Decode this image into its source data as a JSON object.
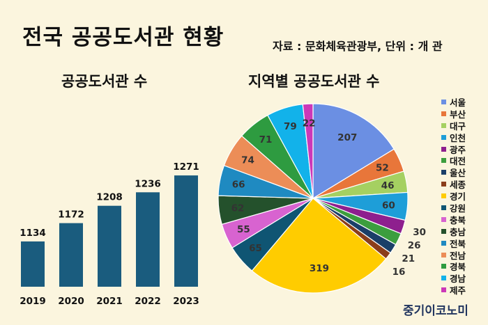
{
  "header": {
    "title": "전국 공공도서관 현황",
    "source": "자료 : 문화체육관광부, 단위 : 개 관"
  },
  "brand": "중기이코노미",
  "chart_data": [
    {
      "type": "bar",
      "title": "공공도서관 수",
      "categories": [
        "2019",
        "2020",
        "2021",
        "2022",
        "2023"
      ],
      "values": [
        1134,
        1172,
        1208,
        1236,
        1271
      ],
      "ylim": [
        1040,
        1300
      ],
      "grid": false,
      "color": "#1A5C7E"
    },
    {
      "type": "pie",
      "title": "지역별 공공도서관 수",
      "legend_position": "right",
      "labels": [
        "서울",
        "부산",
        "대구",
        "인천",
        "광주",
        "대전",
        "울산",
        "세종",
        "경기",
        "강원",
        "충북",
        "충남",
        "전북",
        "전남",
        "경북",
        "경남",
        "제주"
      ],
      "values": [
        207,
        52,
        46,
        60,
        30,
        26,
        21,
        16,
        319,
        65,
        55,
        62,
        66,
        74,
        71,
        79,
        22
      ],
      "colors": [
        "#6B8FE3",
        "#E8763A",
        "#A5D061",
        "#1E9ED8",
        "#8E1F8E",
        "#3C9E3E",
        "#1B3F68",
        "#8B3E1A",
        "#FFCC00",
        "#0F5573",
        "#D863D0",
        "#24512C",
        "#1F8AC1",
        "#EC8D57",
        "#2E9B40",
        "#12B2EA",
        "#CC38B8"
      ]
    }
  ]
}
